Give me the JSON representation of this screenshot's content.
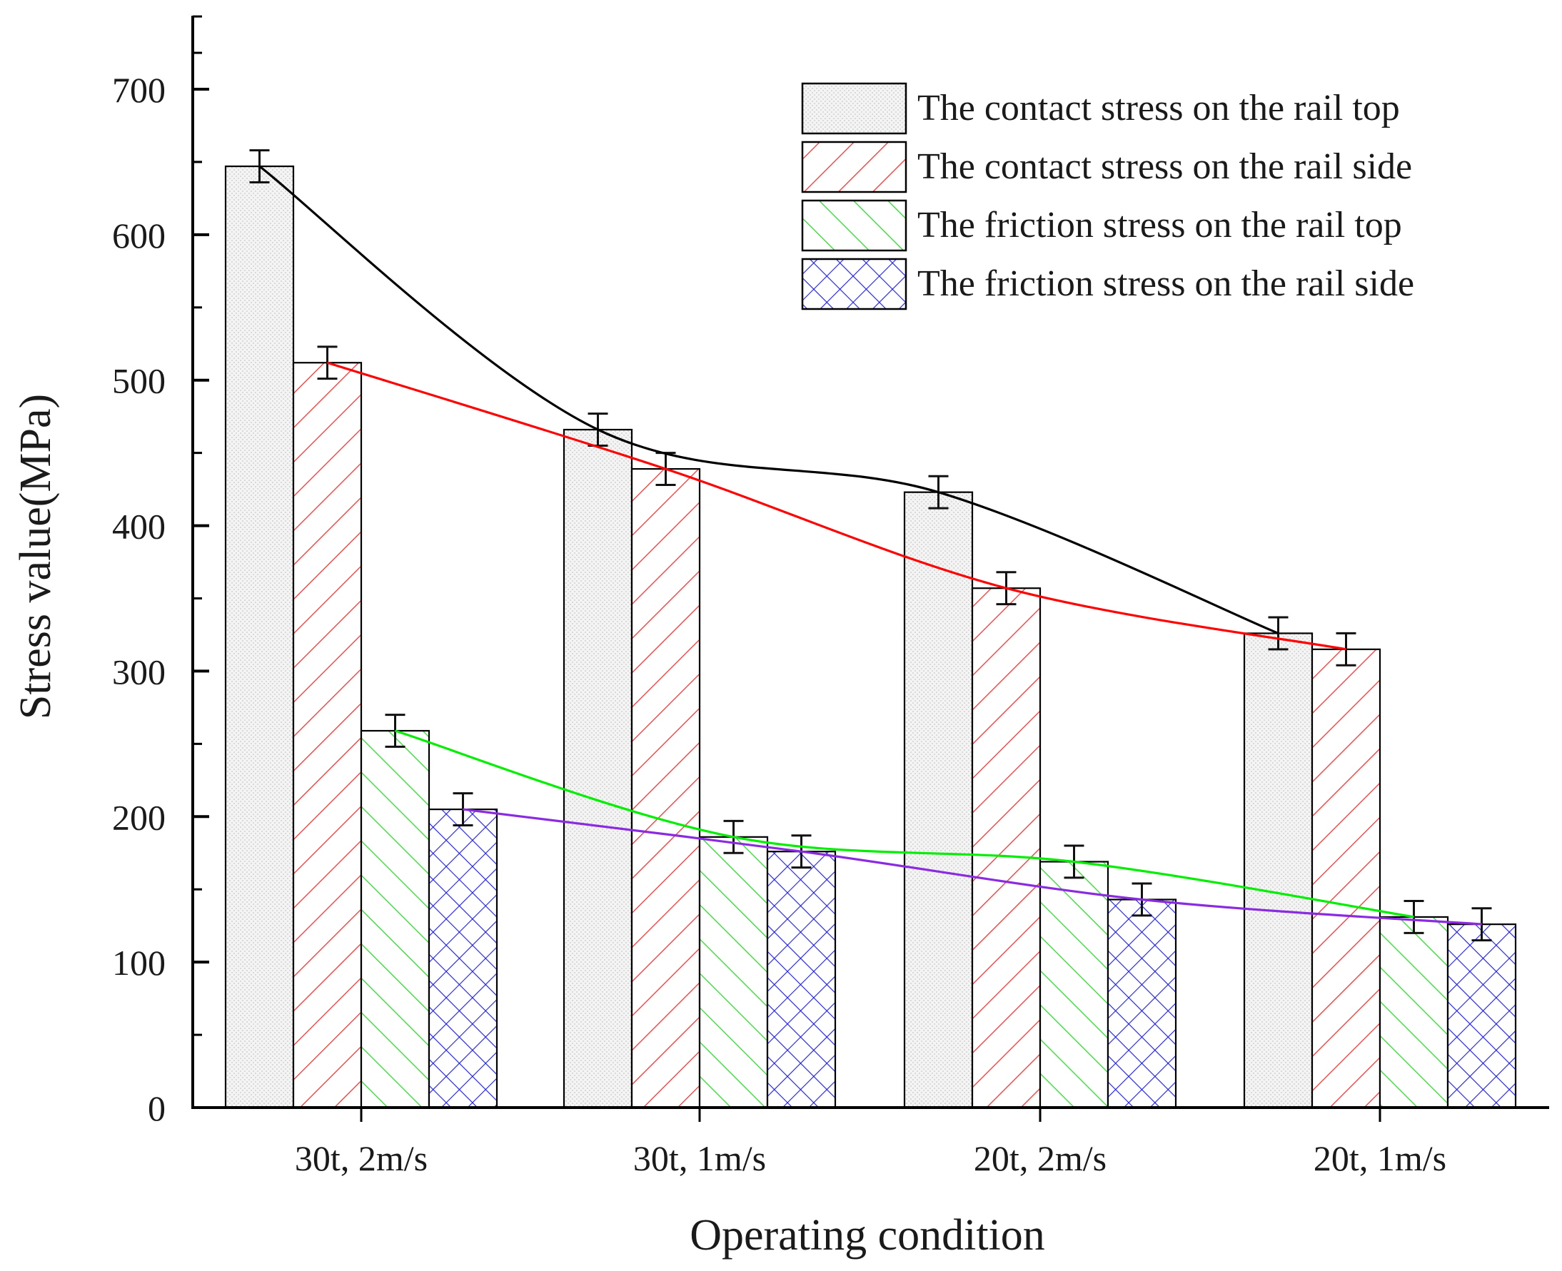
{
  "chart_data": {
    "type": "bar",
    "title": "",
    "xlabel": "Operating condition",
    "ylabel": "Stress value(MPa)",
    "ylim": [
      0,
      750
    ],
    "yticks": [
      0,
      100,
      200,
      300,
      400,
      500,
      600,
      700
    ],
    "ytick_labels": [
      "0",
      "100",
      "200",
      "300",
      "400",
      "500",
      "600",
      "700"
    ],
    "categories": [
      "30t, 2m/s",
      "30t, 1m/s",
      "20t, 2m/s",
      "20t, 1m/s"
    ],
    "error_bar": 11,
    "legend_position": "top-right",
    "grid": false,
    "series": [
      {
        "name": "The contact stress on the rail top",
        "values": [
          647,
          466,
          423,
          326
        ],
        "pattern": "dots",
        "fill": "#f2f2f2",
        "stroke": "#000000",
        "line_color": "#000000"
      },
      {
        "name": "The contact stress on the rail side",
        "values": [
          512,
          439,
          357,
          315
        ],
        "pattern": "hatch-right",
        "fill": "#ffffff",
        "stroke": "#ff0000",
        "line_color": "#ff0000"
      },
      {
        "name": "The friction stress on the rail top",
        "values": [
          259,
          186,
          169,
          131
        ],
        "pattern": "hatch-left",
        "fill": "#ffffff",
        "stroke": "#00dd00",
        "line_color": "#00ee00"
      },
      {
        "name": "The friction stress on the rail side",
        "values": [
          205,
          176,
          143,
          126
        ],
        "pattern": "crosshatch",
        "fill": "#ffffff",
        "stroke": "#0000ff",
        "line_color": "#8a2be2"
      }
    ]
  }
}
